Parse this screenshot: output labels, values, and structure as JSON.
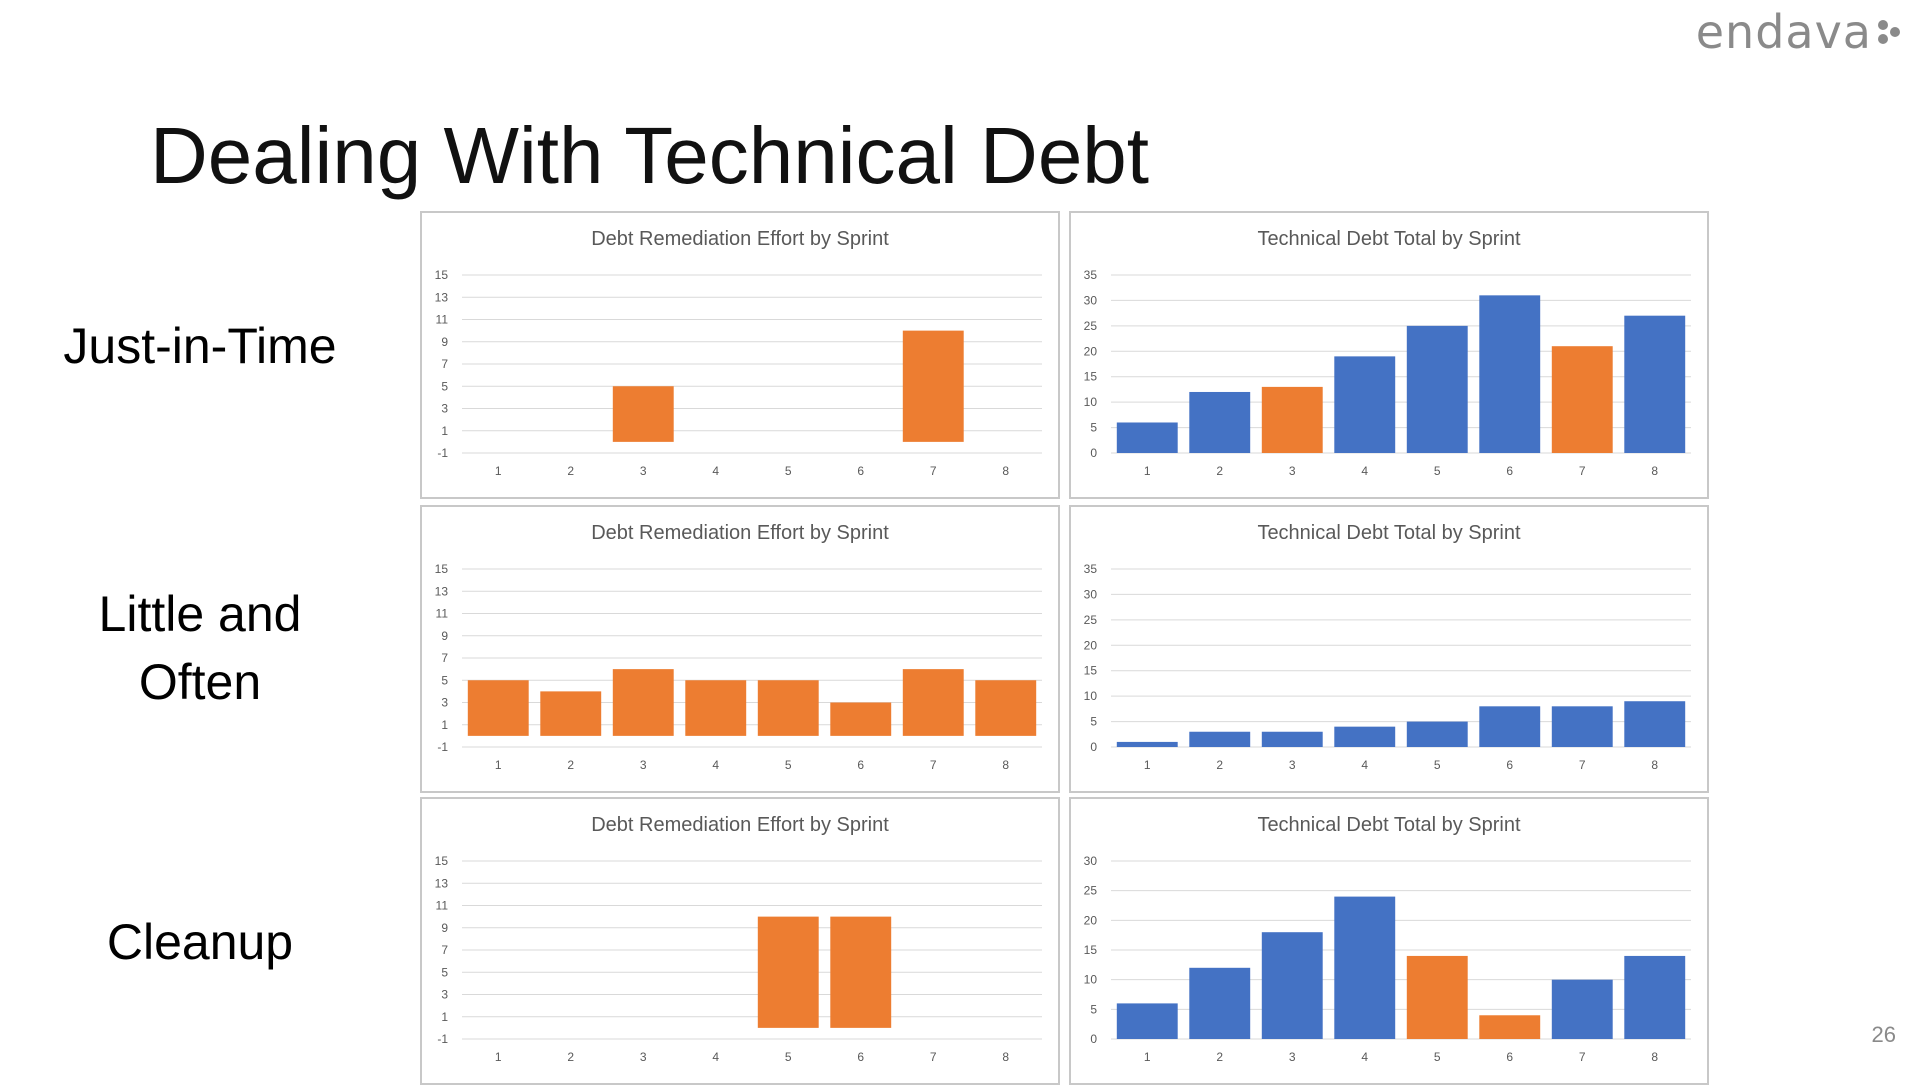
{
  "brand": {
    "logo_text": "endava"
  },
  "title": "Dealing With Technical Debt",
  "page_number": "26",
  "rows": [
    {
      "label_lines": [
        "Just-in-Time"
      ]
    },
    {
      "label_lines": [
        "Little and",
        "Often"
      ]
    },
    {
      "label_lines": [
        "Cleanup"
      ]
    }
  ],
  "colors": {
    "orange": "#ED7D31",
    "blue": "#4472C4",
    "grid": "#d9d9d9",
    "axis_text": "#595959"
  },
  "chart_data": [
    {
      "type": "bar",
      "title": "Debt Remediation Effort by Sprint",
      "categories": [
        "1",
        "2",
        "3",
        "4",
        "5",
        "6",
        "7",
        "8"
      ],
      "values": [
        0,
        0,
        5,
        0,
        0,
        0,
        10,
        0
      ],
      "bar_colors": [
        "orange",
        "orange",
        "orange",
        "orange",
        "orange",
        "orange",
        "orange",
        "orange"
      ],
      "ylim": [
        -1,
        15
      ],
      "yticks": [
        -1,
        1,
        3,
        5,
        7,
        9,
        11,
        13,
        15
      ],
      "grid": true
    },
    {
      "type": "bar",
      "title": "Technical Debt Total by Sprint",
      "categories": [
        "1",
        "2",
        "3",
        "4",
        "5",
        "6",
        "7",
        "8"
      ],
      "values": [
        6,
        12,
        13,
        19,
        25,
        31,
        21,
        27
      ],
      "bar_colors": [
        "blue",
        "blue",
        "orange",
        "blue",
        "blue",
        "blue",
        "orange",
        "blue"
      ],
      "ylim": [
        0,
        35
      ],
      "yticks": [
        0,
        5,
        10,
        15,
        20,
        25,
        30,
        35
      ],
      "grid": true
    },
    {
      "type": "bar",
      "title": "Debt Remediation Effort by Sprint",
      "categories": [
        "1",
        "2",
        "3",
        "4",
        "5",
        "6",
        "7",
        "8"
      ],
      "values": [
        5,
        4,
        6,
        5,
        5,
        3,
        6,
        5
      ],
      "bar_colors": [
        "orange",
        "orange",
        "orange",
        "orange",
        "orange",
        "orange",
        "orange",
        "orange"
      ],
      "ylim": [
        -1,
        15
      ],
      "yticks": [
        -1,
        1,
        3,
        5,
        7,
        9,
        11,
        13,
        15
      ],
      "grid": true
    },
    {
      "type": "bar",
      "title": "Technical Debt Total by Sprint",
      "categories": [
        "1",
        "2",
        "3",
        "4",
        "5",
        "6",
        "7",
        "8"
      ],
      "values": [
        1,
        3,
        3,
        4,
        5,
        8,
        8,
        9
      ],
      "bar_colors": [
        "blue",
        "blue",
        "blue",
        "blue",
        "blue",
        "blue",
        "blue",
        "blue"
      ],
      "ylim": [
        0,
        35
      ],
      "yticks": [
        0,
        5,
        10,
        15,
        20,
        25,
        30,
        35
      ],
      "grid": true
    },
    {
      "type": "bar",
      "title": "Debt Remediation Effort by Sprint",
      "categories": [
        "1",
        "2",
        "3",
        "4",
        "5",
        "6",
        "7",
        "8"
      ],
      "values": [
        0,
        0,
        0,
        0,
        10,
        10,
        0,
        0
      ],
      "bar_colors": [
        "orange",
        "orange",
        "orange",
        "orange",
        "orange",
        "orange",
        "orange",
        "orange"
      ],
      "ylim": [
        -1,
        15
      ],
      "yticks": [
        -1,
        1,
        3,
        5,
        7,
        9,
        11,
        13,
        15
      ],
      "grid": true
    },
    {
      "type": "bar",
      "title": "Technical Debt Total by Sprint",
      "categories": [
        "1",
        "2",
        "3",
        "4",
        "5",
        "6",
        "7",
        "8"
      ],
      "values": [
        6,
        12,
        18,
        24,
        14,
        4,
        10,
        14
      ],
      "bar_colors": [
        "blue",
        "blue",
        "blue",
        "blue",
        "orange",
        "orange",
        "blue",
        "blue"
      ],
      "ylim": [
        0,
        30
      ],
      "yticks": [
        0,
        5,
        10,
        15,
        20,
        25,
        30
      ],
      "grid": true
    }
  ]
}
